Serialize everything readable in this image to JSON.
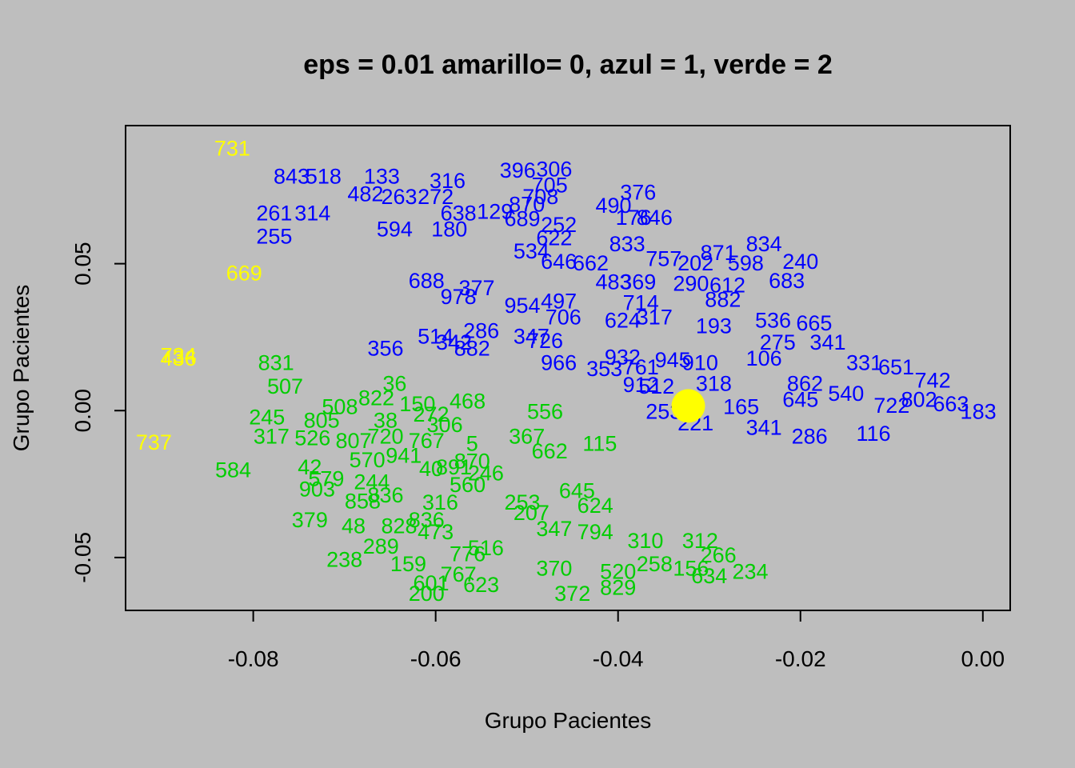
{
  "colors": {
    "background": "#bebebe",
    "yellow": "#ffff00",
    "blue": "#0000ff",
    "green": "#00cd00"
  },
  "chart_data": {
    "type": "scatter",
    "title": "eps = 0.01  amarillo= 0, azul = 1, verde = 2",
    "xlabel": "Grupo Pacientes",
    "ylabel": "Grupo Pacientes",
    "xlim": [
      -0.094,
      0.003
    ],
    "ylim": [
      -0.068,
      0.097
    ],
    "xticks": [
      -0.08,
      -0.06,
      -0.04,
      -0.02,
      0.0
    ],
    "xtick_labels": [
      "-0.08",
      "-0.06",
      "-0.04",
      "-0.02",
      "0.00"
    ],
    "yticks": [
      -0.05,
      0.0,
      0.05
    ],
    "ytick_labels": [
      "-0.05",
      "0.00",
      "0.05"
    ],
    "grid": false,
    "legend": "none",
    "marker": {
      "x": -0.0323,
      "y": 0.0016,
      "group": 0
    },
    "series": [
      {
        "group": 0,
        "color": "#ffff00",
        "points": [
          {
            "label": "731",
            "x": -0.0823,
            "y": 0.0895
          },
          {
            "label": "669",
            "x": -0.081,
            "y": 0.047
          },
          {
            "label": "734",
            "x": -0.0882,
            "y": 0.019
          },
          {
            "label": "436",
            "x": -0.0882,
            "y": 0.018
          },
          {
            "label": "737",
            "x": -0.0909,
            "y": -0.0105
          }
        ]
      },
      {
        "group": 1,
        "color": "#0000ff",
        "points": [
          {
            "label": "843",
            "x": -0.0758,
            "y": 0.08
          },
          {
            "label": "518",
            "x": -0.0723,
            "y": 0.08
          },
          {
            "label": "133",
            "x": -0.0659,
            "y": 0.08
          },
          {
            "label": "316",
            "x": -0.0587,
            "y": 0.0785
          },
          {
            "label": "482",
            "x": -0.0677,
            "y": 0.074
          },
          {
            "label": "263",
            "x": -0.064,
            "y": 0.073
          },
          {
            "label": "272",
            "x": -0.06,
            "y": 0.073
          },
          {
            "label": "396",
            "x": -0.051,
            "y": 0.082
          },
          {
            "label": "306",
            "x": -0.047,
            "y": 0.0825
          },
          {
            "label": "705",
            "x": -0.0475,
            "y": 0.077
          },
          {
            "label": "708",
            "x": -0.0485,
            "y": 0.073
          },
          {
            "label": "870",
            "x": -0.05,
            "y": 0.0705
          },
          {
            "label": "261",
            "x": -0.0777,
            "y": 0.0675
          },
          {
            "label": "314",
            "x": -0.0735,
            "y": 0.0675
          },
          {
            "label": "638",
            "x": -0.0575,
            "y": 0.0675
          },
          {
            "label": "129",
            "x": -0.0535,
            "y": 0.068
          },
          {
            "label": "689",
            "x": -0.0505,
            "y": 0.0655
          },
          {
            "label": "255",
            "x": -0.0777,
            "y": 0.0595
          },
          {
            "label": "594",
            "x": -0.0645,
            "y": 0.062
          },
          {
            "label": "180",
            "x": -0.0585,
            "y": 0.062
          },
          {
            "label": "252",
            "x": -0.0465,
            "y": 0.0635
          },
          {
            "label": "376",
            "x": -0.0378,
            "y": 0.0745
          },
          {
            "label": "490",
            "x": -0.0405,
            "y": 0.07
          },
          {
            "label": "176",
            "x": -0.0383,
            "y": 0.066
          },
          {
            "label": "846",
            "x": -0.036,
            "y": 0.066
          },
          {
            "label": "622",
            "x": -0.047,
            "y": 0.059
          },
          {
            "label": "534",
            "x": -0.0495,
            "y": 0.0545
          },
          {
            "label": "646",
            "x": -0.0465,
            "y": 0.051
          },
          {
            "label": "662",
            "x": -0.043,
            "y": 0.0505
          },
          {
            "label": "833",
            "x": -0.039,
            "y": 0.057
          },
          {
            "label": "834",
            "x": -0.024,
            "y": 0.057
          },
          {
            "label": "871",
            "x": -0.029,
            "y": 0.054
          },
          {
            "label": "757",
            "x": -0.035,
            "y": 0.052
          },
          {
            "label": "202",
            "x": -0.0315,
            "y": 0.0505
          },
          {
            "label": "598",
            "x": -0.026,
            "y": 0.0505
          },
          {
            "label": "240",
            "x": -0.02,
            "y": 0.051
          },
          {
            "label": "688",
            "x": -0.061,
            "y": 0.0445
          },
          {
            "label": "377",
            "x": -0.0555,
            "y": 0.042
          },
          {
            "label": "978",
            "x": -0.0575,
            "y": 0.039
          },
          {
            "label": "954",
            "x": -0.0505,
            "y": 0.036
          },
          {
            "label": "497",
            "x": -0.0465,
            "y": 0.0375
          },
          {
            "label": "483",
            "x": -0.0405,
            "y": 0.044
          },
          {
            "label": "369",
            "x": -0.0378,
            "y": 0.044
          },
          {
            "label": "290",
            "x": -0.032,
            "y": 0.0435
          },
          {
            "label": "612",
            "x": -0.028,
            "y": 0.043
          },
          {
            "label": "683",
            "x": -0.0215,
            "y": 0.0445
          },
          {
            "label": "714",
            "x": -0.0375,
            "y": 0.037
          },
          {
            "label": "882",
            "x": -0.0285,
            "y": 0.038
          },
          {
            "label": "356",
            "x": -0.0655,
            "y": 0.0215
          },
          {
            "label": "514",
            "x": -0.06,
            "y": 0.0255
          },
          {
            "label": "286",
            "x": -0.055,
            "y": 0.0275
          },
          {
            "label": "342",
            "x": -0.058,
            "y": 0.0235
          },
          {
            "label": "882",
            "x": -0.056,
            "y": 0.0215
          },
          {
            "label": "347",
            "x": -0.0495,
            "y": 0.0255
          },
          {
            "label": "726",
            "x": -0.048,
            "y": 0.024
          },
          {
            "label": "706",
            "x": -0.046,
            "y": 0.032
          },
          {
            "label": "624",
            "x": -0.0395,
            "y": 0.031
          },
          {
            "label": "317",
            "x": -0.036,
            "y": 0.032
          },
          {
            "label": "193",
            "x": -0.0295,
            "y": 0.029
          },
          {
            "label": "536",
            "x": -0.023,
            "y": 0.031
          },
          {
            "label": "665",
            "x": -0.0185,
            "y": 0.03
          },
          {
            "label": "275",
            "x": -0.0225,
            "y": 0.0235
          },
          {
            "label": "341",
            "x": -0.017,
            "y": 0.0235
          },
          {
            "label": "966",
            "x": -0.0465,
            "y": 0.0165
          },
          {
            "label": "353",
            "x": -0.0415,
            "y": 0.0145
          },
          {
            "label": "932",
            "x": -0.0395,
            "y": 0.0185
          },
          {
            "label": "761",
            "x": -0.0375,
            "y": 0.015
          },
          {
            "label": "945",
            "x": -0.034,
            "y": 0.0175
          },
          {
            "label": "910",
            "x": -0.031,
            "y": 0.0165
          },
          {
            "label": "106",
            "x": -0.024,
            "y": 0.018
          },
          {
            "label": "331",
            "x": -0.013,
            "y": 0.0165
          },
          {
            "label": "651",
            "x": -0.0095,
            "y": 0.015
          },
          {
            "label": "912",
            "x": -0.0375,
            "y": 0.009
          },
          {
            "label": "512",
            "x": -0.0358,
            "y": 0.0085
          },
          {
            "label": "318",
            "x": -0.0295,
            "y": 0.0095
          },
          {
            "label": "862",
            "x": -0.0195,
            "y": 0.0095
          },
          {
            "label": "742",
            "x": -0.0055,
            "y": 0.0105
          },
          {
            "label": "253",
            "x": -0.035,
            "y": 0.0
          },
          {
            "label": "165",
            "x": -0.0265,
            "y": 0.0015
          },
          {
            "label": "221",
            "x": -0.0315,
            "y": -0.004
          },
          {
            "label": "341",
            "x": -0.024,
            "y": -0.0055
          },
          {
            "label": "286",
            "x": -0.019,
            "y": -0.0085
          },
          {
            "label": "116",
            "x": -0.012,
            "y": -0.0075
          },
          {
            "label": "802",
            "x": -0.007,
            "y": 0.004
          },
          {
            "label": "663",
            "x": -0.0035,
            "y": 0.0025
          },
          {
            "label": "183",
            "x": -0.0005,
            "y": 0.0
          },
          {
            "label": "540",
            "x": -0.015,
            "y": 0.006
          },
          {
            "label": "722",
            "x": -0.01,
            "y": 0.002
          },
          {
            "label": "645",
            "x": -0.02,
            "y": 0.004
          }
        ]
      },
      {
        "group": 2,
        "color": "#00cd00",
        "points": [
          {
            "label": "831",
            "x": -0.0775,
            "y": 0.0165
          },
          {
            "label": "507",
            "x": -0.0765,
            "y": 0.0085
          },
          {
            "label": "36",
            "x": -0.0645,
            "y": 0.0095
          },
          {
            "label": "822",
            "x": -0.0665,
            "y": 0.0045
          },
          {
            "label": "245",
            "x": -0.0785,
            "y": -0.002
          },
          {
            "label": "508",
            "x": -0.0705,
            "y": 0.0015
          },
          {
            "label": "805",
            "x": -0.0725,
            "y": -0.003
          },
          {
            "label": "38",
            "x": -0.0655,
            "y": -0.003
          },
          {
            "label": "150",
            "x": -0.062,
            "y": 0.0025
          },
          {
            "label": "272",
            "x": -0.0605,
            "y": -0.001
          },
          {
            "label": "468",
            "x": -0.0565,
            "y": 0.0035
          },
          {
            "label": "556",
            "x": -0.048,
            "y": 0.0
          },
          {
            "label": "317",
            "x": -0.078,
            "y": -0.0085
          },
          {
            "label": "526",
            "x": -0.0735,
            "y": -0.009
          },
          {
            "label": "807",
            "x": -0.069,
            "y": -0.01
          },
          {
            "label": "720",
            "x": -0.0655,
            "y": -0.0085
          },
          {
            "label": "767",
            "x": -0.061,
            "y": -0.01
          },
          {
            "label": "306",
            "x": -0.059,
            "y": -0.0045
          },
          {
            "label": "367",
            "x": -0.05,
            "y": -0.0085
          },
          {
            "label": "5",
            "x": -0.056,
            "y": -0.011
          },
          {
            "label": "662",
            "x": -0.0475,
            "y": -0.0135
          },
          {
            "label": "115",
            "x": -0.042,
            "y": -0.011
          },
          {
            "label": "584",
            "x": -0.0822,
            "y": -0.02
          },
          {
            "label": "42",
            "x": -0.0738,
            "y": -0.019
          },
          {
            "label": "570",
            "x": -0.0675,
            "y": -0.0165
          },
          {
            "label": "941",
            "x": -0.0635,
            "y": -0.015
          },
          {
            "label": "40",
            "x": -0.0605,
            "y": -0.0195
          },
          {
            "label": "891",
            "x": -0.058,
            "y": -0.019
          },
          {
            "label": "870",
            "x": -0.056,
            "y": -0.017
          },
          {
            "label": "246",
            "x": -0.0545,
            "y": -0.021
          },
          {
            "label": "560",
            "x": -0.0565,
            "y": -0.025
          },
          {
            "label": "579",
            "x": -0.072,
            "y": -0.023
          },
          {
            "label": "244",
            "x": -0.067,
            "y": -0.024
          },
          {
            "label": "903",
            "x": -0.073,
            "y": -0.0265
          },
          {
            "label": "858",
            "x": -0.068,
            "y": -0.0305
          },
          {
            "label": "836",
            "x": -0.0655,
            "y": -0.0285
          },
          {
            "label": "316",
            "x": -0.0595,
            "y": -0.031
          },
          {
            "label": "253",
            "x": -0.0505,
            "y": -0.031
          },
          {
            "label": "645",
            "x": -0.0445,
            "y": -0.027
          },
          {
            "label": "624",
            "x": -0.0425,
            "y": -0.032
          },
          {
            "label": "207",
            "x": -0.0495,
            "y": -0.0345
          },
          {
            "label": "379",
            "x": -0.0738,
            "y": -0.037
          },
          {
            "label": "48",
            "x": -0.069,
            "y": -0.039
          },
          {
            "label": "828",
            "x": -0.064,
            "y": -0.039
          },
          {
            "label": "836",
            "x": -0.061,
            "y": -0.037
          },
          {
            "label": "347",
            "x": -0.047,
            "y": -0.04
          },
          {
            "label": "794",
            "x": -0.0425,
            "y": -0.041
          },
          {
            "label": "310",
            "x": -0.037,
            "y": -0.044
          },
          {
            "label": "312",
            "x": -0.031,
            "y": -0.044
          },
          {
            "label": "473",
            "x": -0.06,
            "y": -0.041
          },
          {
            "label": "289",
            "x": -0.066,
            "y": -0.046
          },
          {
            "label": "776",
            "x": -0.0565,
            "y": -0.0485
          },
          {
            "label": "516",
            "x": -0.0545,
            "y": -0.0465
          },
          {
            "label": "266",
            "x": -0.029,
            "y": -0.049
          },
          {
            "label": "238",
            "x": -0.07,
            "y": -0.0505
          },
          {
            "label": "159",
            "x": -0.063,
            "y": -0.052
          },
          {
            "label": "767",
            "x": -0.0575,
            "y": -0.0555
          },
          {
            "label": "623",
            "x": -0.055,
            "y": -0.059
          },
          {
            "label": "370",
            "x": -0.047,
            "y": -0.0535
          },
          {
            "label": "258",
            "x": -0.036,
            "y": -0.052
          },
          {
            "label": "156",
            "x": -0.032,
            "y": -0.0535
          },
          {
            "label": "634",
            "x": -0.03,
            "y": -0.056
          },
          {
            "label": "200",
            "x": -0.061,
            "y": -0.062
          },
          {
            "label": "601",
            "x": -0.0605,
            "y": -0.0585
          },
          {
            "label": "372",
            "x": -0.045,
            "y": -0.062
          },
          {
            "label": "829",
            "x": -0.04,
            "y": -0.06
          },
          {
            "label": "520",
            "x": -0.04,
            "y": -0.0545
          },
          {
            "label": "234",
            "x": -0.0255,
            "y": -0.0545
          }
        ]
      }
    ]
  }
}
